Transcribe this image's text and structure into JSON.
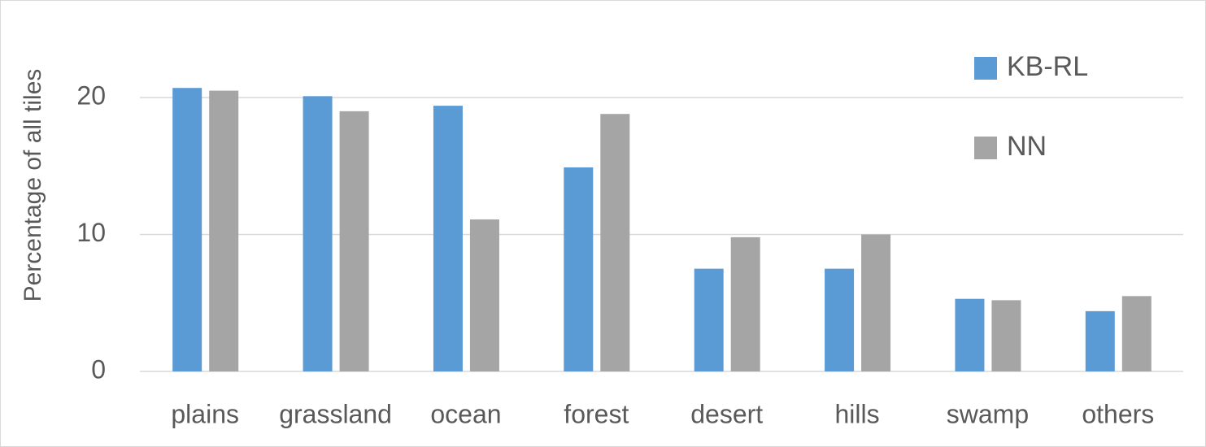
{
  "chart_data": {
    "type": "bar",
    "y_label": "Percentage of all tiles",
    "categories": [
      "plains",
      "grassland",
      "ocean",
      "forest",
      "desert",
      "hills",
      "swamp",
      "others"
    ],
    "series": [
      {
        "name": "KB-RL",
        "color": "#5b9bd5",
        "values": [
          20.7,
          20.1,
          19.4,
          14.9,
          7.5,
          7.5,
          5.3,
          4.4
        ]
      },
      {
        "name": "NN",
        "color": "#a5a5a5",
        "values": [
          20.5,
          19.0,
          11.1,
          18.8,
          9.8,
          10.0,
          5.2,
          5.5
        ]
      }
    ],
    "ylim": [
      0,
      25
    ],
    "yticks": [
      0,
      10,
      20
    ],
    "grid": true,
    "legend": "top-right"
  }
}
